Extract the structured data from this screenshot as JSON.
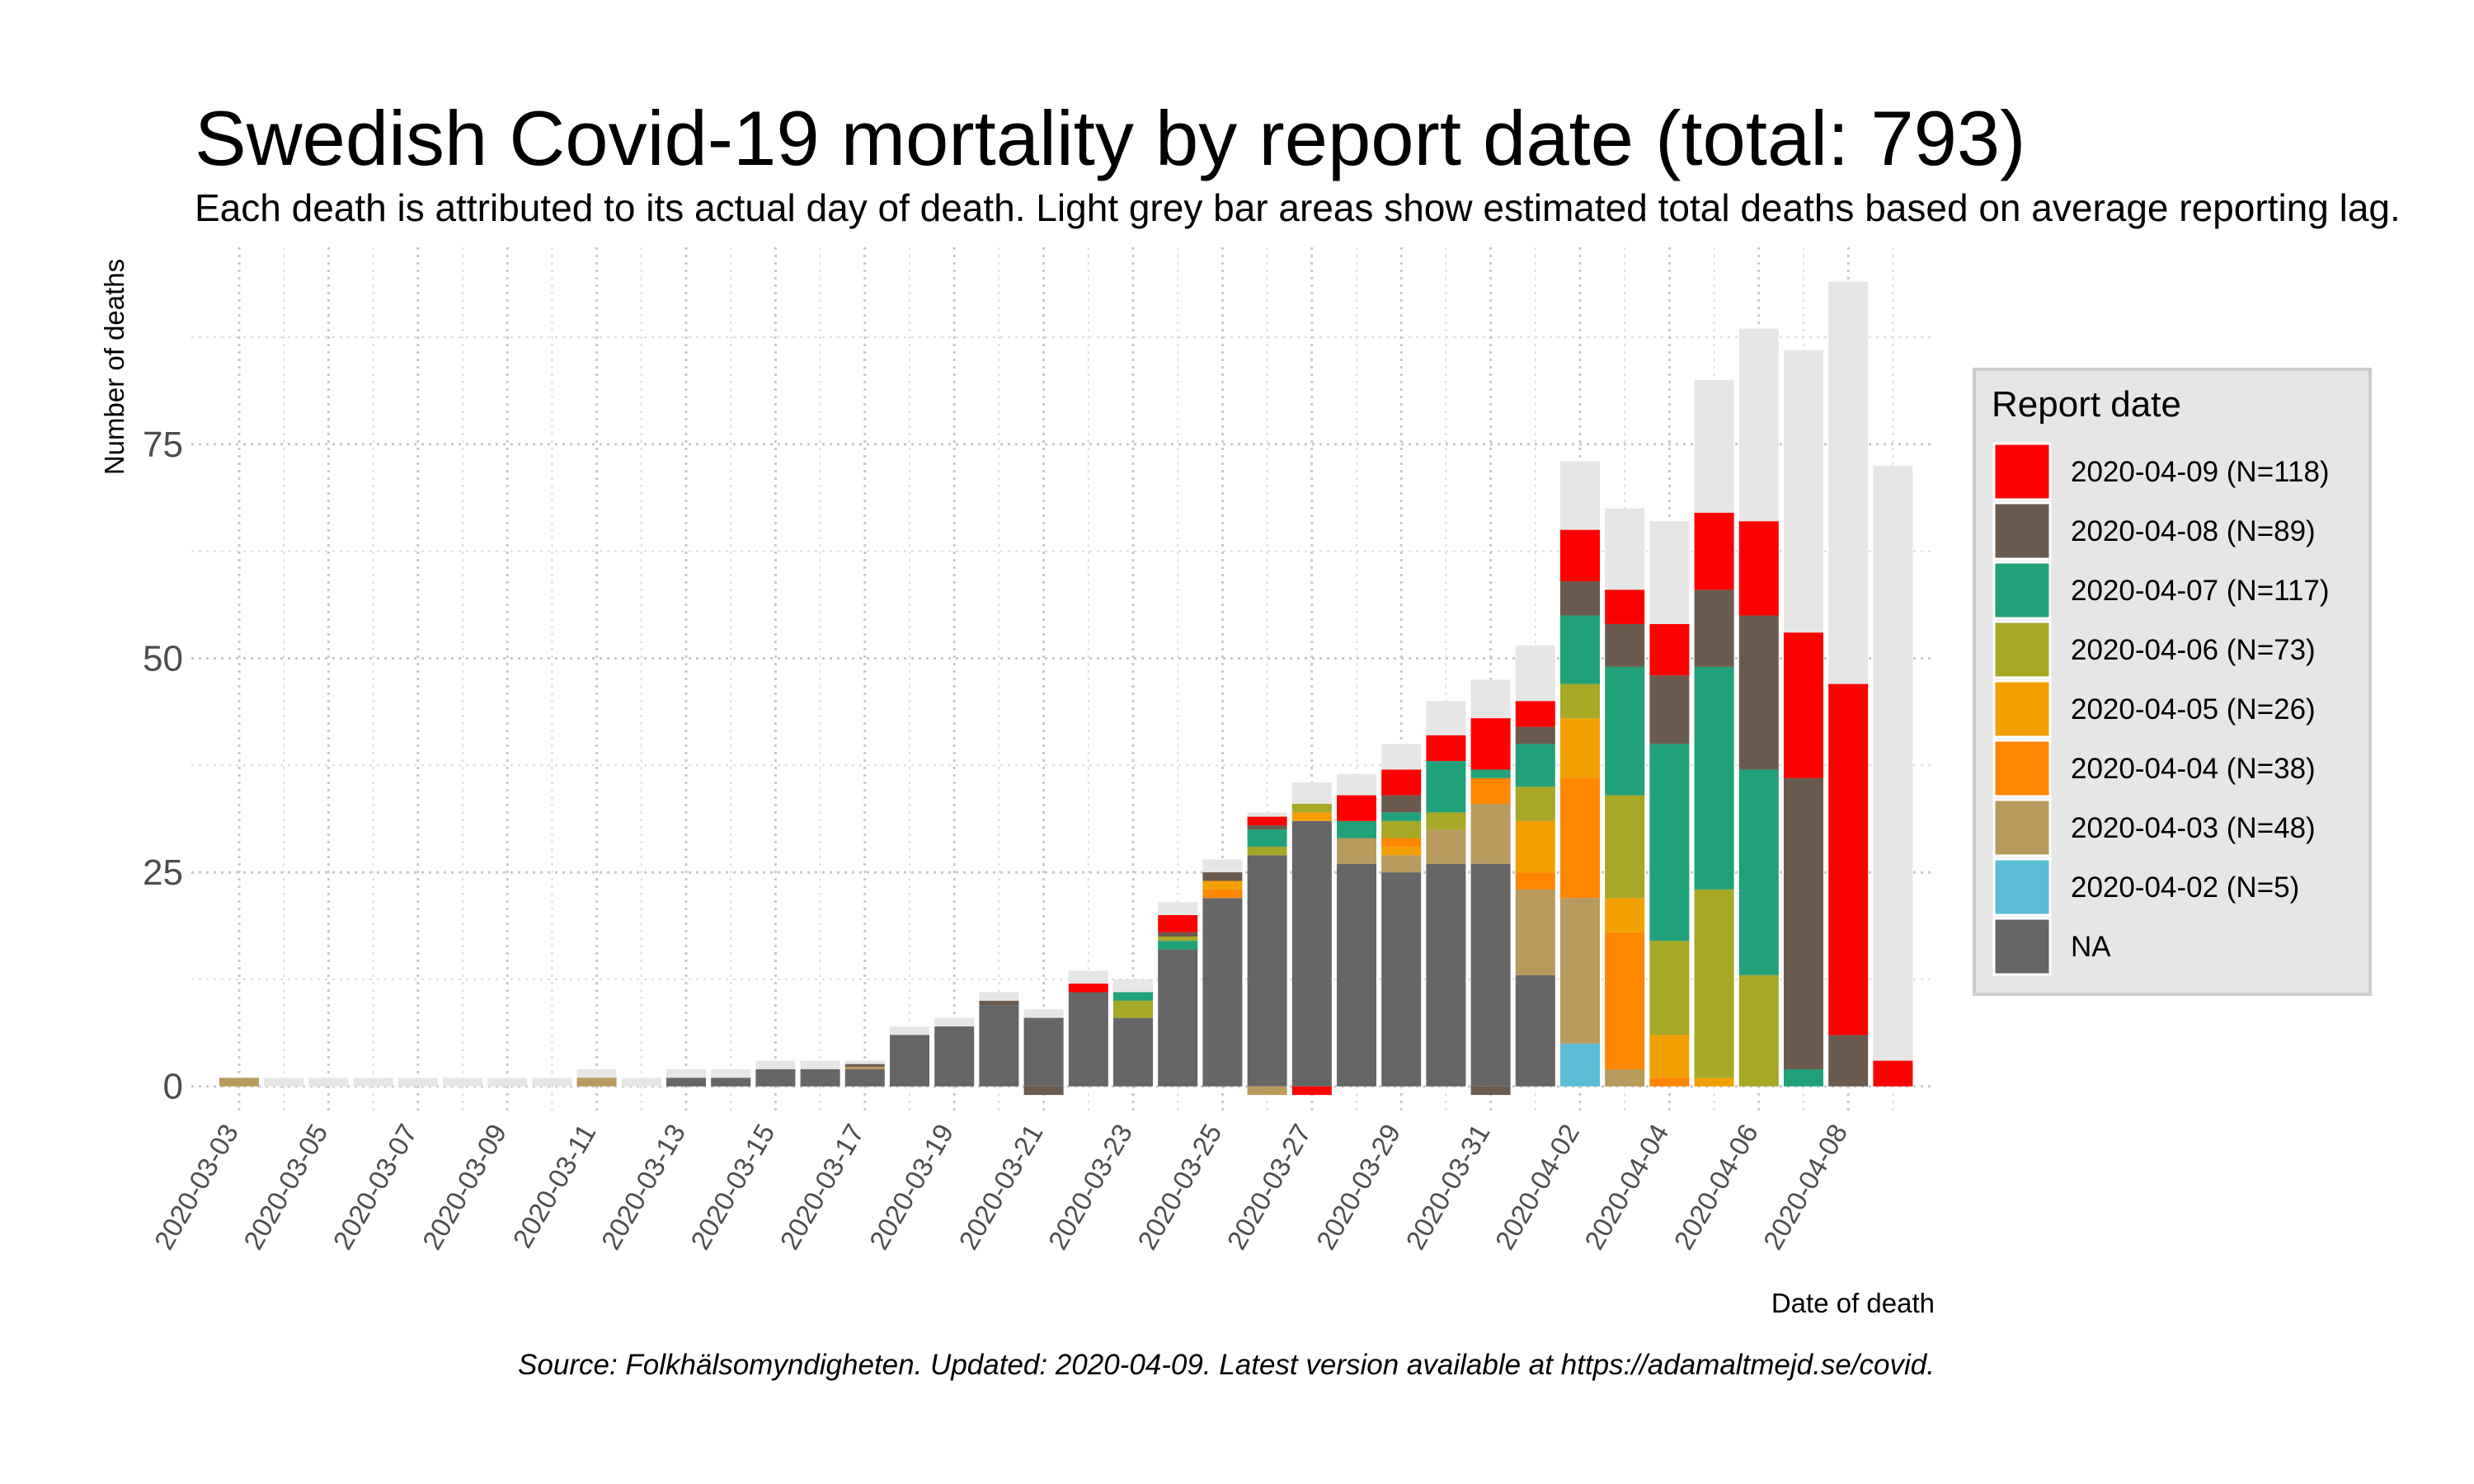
{
  "colors": {
    "estimate": "#e6e6e6",
    "NA": "#666666",
    "2020-04-02": "#5bbcd6",
    "2020-04-03": "#b89a5c",
    "2020-04-04": "#ff8600",
    "2020-04-05": "#f2a000",
    "2020-04-06": "#a7a826",
    "2020-04-07": "#21a179",
    "2020-04-08": "#6b5b4f",
    "2020-04-09": "#ff0000"
  },
  "chart_data": {
    "type": "bar",
    "stacked": true,
    "title": "Swedish Covid-19 mortality by report date (total: 793)",
    "subtitle": "Each death is attributed to its actual day of death. Light grey bar areas show estimated total deaths based on average reporting lag.",
    "xlabel": "Date of death",
    "ylabel": "Number of deaths",
    "caption": "Source: Folkhälsomyndigheten. Updated: 2020-04-09. Latest version available at https://adamaltmejd.se/covid.",
    "ylim": [
      -3.3,
      98
    ],
    "yticks": [
      0,
      25,
      50,
      75
    ],
    "x_tick_labels": [
      "2020-03-03",
      "2020-03-05",
      "2020-03-07",
      "2020-03-09",
      "2020-03-11",
      "2020-03-13",
      "2020-03-15",
      "2020-03-17",
      "2020-03-19",
      "2020-03-21",
      "2020-03-23",
      "2020-03-25",
      "2020-03-27",
      "2020-03-29",
      "2020-03-31",
      "2020-04-02",
      "2020-04-04",
      "2020-04-06",
      "2020-04-08"
    ],
    "legend": {
      "title": "Report date",
      "position": "right",
      "entries": [
        {
          "key": "2020-04-09",
          "label": "2020-04-09 (N=118)"
        },
        {
          "key": "2020-04-08",
          "label": "2020-04-08 (N=89)"
        },
        {
          "key": "2020-04-07",
          "label": "2020-04-07 (N=117)"
        },
        {
          "key": "2020-04-06",
          "label": "2020-04-06 (N=73)"
        },
        {
          "key": "2020-04-05",
          "label": "2020-04-05 (N=26)"
        },
        {
          "key": "2020-04-04",
          "label": "2020-04-04 (N=38)"
        },
        {
          "key": "2020-04-03",
          "label": "2020-04-03 (N=48)"
        },
        {
          "key": "2020-04-02",
          "label": "2020-04-02 (N=5)"
        },
        {
          "key": "NA",
          "label": "NA"
        }
      ]
    },
    "bars": [
      {
        "date": "2020-03-03",
        "estimate": 1,
        "segments": [
          [
            "2020-04-03",
            1
          ]
        ]
      },
      {
        "date": "2020-03-04",
        "estimate": 1,
        "segments": []
      },
      {
        "date": "2020-03-05",
        "estimate": 1,
        "segments": []
      },
      {
        "date": "2020-03-06",
        "estimate": 1,
        "segments": []
      },
      {
        "date": "2020-03-07",
        "estimate": 1,
        "segments": []
      },
      {
        "date": "2020-03-08",
        "estimate": 1,
        "segments": []
      },
      {
        "date": "2020-03-09",
        "estimate": 1,
        "segments": []
      },
      {
        "date": "2020-03-10",
        "estimate": 1,
        "segments": []
      },
      {
        "date": "2020-03-11",
        "estimate": 2,
        "segments": [
          [
            "2020-04-03",
            1
          ]
        ]
      },
      {
        "date": "2020-03-12",
        "estimate": 1,
        "segments": []
      },
      {
        "date": "2020-03-13",
        "estimate": 2,
        "segments": [
          [
            "NA",
            1
          ]
        ]
      },
      {
        "date": "2020-03-14",
        "estimate": 2,
        "segments": [
          [
            "NA",
            1
          ]
        ]
      },
      {
        "date": "2020-03-15",
        "estimate": 3,
        "segments": [
          [
            "NA",
            2
          ]
        ]
      },
      {
        "date": "2020-03-16",
        "estimate": 3,
        "segments": [
          [
            "NA",
            2
          ]
        ]
      },
      {
        "date": "2020-03-17",
        "estimate": 3,
        "segments": [
          [
            "NA",
            2
          ],
          [
            "2020-04-03",
            0.3
          ],
          [
            "2020-04-08",
            0.3
          ]
        ]
      },
      {
        "date": "2020-03-18",
        "estimate": 7,
        "segments": [
          [
            "NA",
            6
          ]
        ]
      },
      {
        "date": "2020-03-19",
        "estimate": 8,
        "segments": [
          [
            "NA",
            7
          ]
        ]
      },
      {
        "date": "2020-03-20",
        "estimate": 11,
        "segments": [
          [
            "NA",
            9.5
          ],
          [
            "2020-04-08",
            0.5
          ]
        ]
      },
      {
        "date": "2020-03-21",
        "estimate": 9,
        "segments": [
          [
            "NA",
            8
          ],
          [
            "2020-04-08",
            -1
          ]
        ]
      },
      {
        "date": "2020-03-22",
        "estimate": 13.5,
        "segments": [
          [
            "NA",
            11
          ],
          [
            "2020-04-09",
            1
          ]
        ]
      },
      {
        "date": "2020-03-23",
        "estimate": 12.5,
        "segments": [
          [
            "NA",
            8
          ],
          [
            "2020-04-06",
            2
          ],
          [
            "2020-04-07",
            1
          ]
        ]
      },
      {
        "date": "2020-03-24",
        "estimate": 21.5,
        "segments": [
          [
            "NA",
            16
          ],
          [
            "2020-04-07",
            1
          ],
          [
            "2020-04-06",
            0.5
          ],
          [
            "2020-04-08",
            0.5
          ],
          [
            "2020-04-09",
            2
          ]
        ]
      },
      {
        "date": "2020-03-25",
        "estimate": 26.5,
        "segments": [
          [
            "NA",
            22
          ],
          [
            "2020-04-04",
            1
          ],
          [
            "2020-04-05",
            1
          ],
          [
            "2020-04-08",
            1
          ]
        ]
      },
      {
        "date": "2020-03-26",
        "estimate": 32,
        "segments": [
          [
            "NA",
            27
          ],
          [
            "2020-04-06",
            1
          ],
          [
            "2020-04-07",
            2
          ],
          [
            "2020-04-08",
            0.5
          ],
          [
            "2020-04-09",
            1
          ],
          [
            "2020-04-03",
            -1
          ]
        ]
      },
      {
        "date": "2020-03-27",
        "estimate": 35.5,
        "segments": [
          [
            "NA",
            31
          ],
          [
            "2020-04-05",
            1
          ],
          [
            "2020-04-06",
            1
          ],
          [
            "2020-04-09",
            -1
          ]
        ]
      },
      {
        "date": "2020-03-28",
        "estimate": 36.5,
        "segments": [
          [
            "NA",
            26
          ],
          [
            "2020-04-03",
            3
          ],
          [
            "2020-04-07",
            2
          ],
          [
            "2020-04-09",
            3
          ]
        ]
      },
      {
        "date": "2020-03-29",
        "estimate": 40,
        "segments": [
          [
            "NA",
            25
          ],
          [
            "2020-04-03",
            2
          ],
          [
            "2020-04-05",
            1
          ],
          [
            "2020-04-04",
            1
          ],
          [
            "2020-04-06",
            2
          ],
          [
            "2020-04-07",
            1
          ],
          [
            "2020-04-08",
            2
          ],
          [
            "2020-04-09",
            3
          ]
        ]
      },
      {
        "date": "2020-03-30",
        "estimate": 45,
        "segments": [
          [
            "NA",
            26
          ],
          [
            "2020-04-03",
            4
          ],
          [
            "2020-04-06",
            2
          ],
          [
            "2020-04-07",
            6
          ],
          [
            "2020-04-09",
            3
          ]
        ]
      },
      {
        "date": "2020-03-31",
        "estimate": 47.5,
        "segments": [
          [
            "NA",
            26
          ],
          [
            "2020-04-03",
            7
          ],
          [
            "2020-04-04",
            3
          ],
          [
            "2020-04-07",
            1
          ],
          [
            "2020-04-09",
            6
          ],
          [
            "2020-04-08",
            -1
          ]
        ]
      },
      {
        "date": "2020-04-01",
        "estimate": 51.5,
        "segments": [
          [
            "NA",
            13
          ],
          [
            "2020-04-03",
            10
          ],
          [
            "2020-04-04",
            2
          ],
          [
            "2020-04-05",
            6
          ],
          [
            "2020-04-06",
            4
          ],
          [
            "2020-04-07",
            5
          ],
          [
            "2020-04-08",
            2
          ],
          [
            "2020-04-09",
            3
          ]
        ]
      },
      {
        "date": "2020-04-02",
        "estimate": 73,
        "segments": [
          [
            "2020-04-02",
            5
          ],
          [
            "2020-04-03",
            17
          ],
          [
            "2020-04-04",
            14
          ],
          [
            "2020-04-05",
            7
          ],
          [
            "2020-04-06",
            4
          ],
          [
            "2020-04-07",
            8
          ],
          [
            "2020-04-08",
            4
          ],
          [
            "2020-04-09",
            6
          ]
        ]
      },
      {
        "date": "2020-04-03",
        "estimate": 67.5,
        "segments": [
          [
            "2020-04-03",
            2
          ],
          [
            "2020-04-04",
            16
          ],
          [
            "2020-04-05",
            4
          ],
          [
            "2020-04-06",
            12
          ],
          [
            "2020-04-07",
            15
          ],
          [
            "2020-04-08",
            5
          ],
          [
            "2020-04-09",
            4
          ]
        ]
      },
      {
        "date": "2020-04-04",
        "estimate": 66,
        "segments": [
          [
            "2020-04-04",
            1
          ],
          [
            "2020-04-05",
            5
          ],
          [
            "2020-04-06",
            11
          ],
          [
            "2020-04-07",
            23
          ],
          [
            "2020-04-08",
            8
          ],
          [
            "2020-04-09",
            6
          ]
        ]
      },
      {
        "date": "2020-04-05",
        "estimate": 82.5,
        "segments": [
          [
            "2020-04-05",
            1
          ],
          [
            "2020-04-06",
            22
          ],
          [
            "2020-04-07",
            26
          ],
          [
            "2020-04-08",
            9
          ],
          [
            "2020-04-09",
            9
          ]
        ]
      },
      {
        "date": "2020-04-06",
        "estimate": 88.5,
        "segments": [
          [
            "2020-04-06",
            13
          ],
          [
            "2020-04-07",
            24
          ],
          [
            "2020-04-08",
            18
          ],
          [
            "2020-04-09",
            11
          ]
        ]
      },
      {
        "date": "2020-04-07",
        "estimate": 86,
        "segments": [
          [
            "2020-04-07",
            2
          ],
          [
            "2020-04-08",
            34
          ],
          [
            "2020-04-09",
            17
          ]
        ]
      },
      {
        "date": "2020-04-08",
        "estimate": 94,
        "segments": [
          [
            "2020-04-08",
            6
          ],
          [
            "2020-04-09",
            41
          ]
        ]
      },
      {
        "date": "2020-04-09",
        "estimate": 72.5,
        "segments": [
          [
            "2020-04-09",
            3
          ]
        ]
      }
    ]
  }
}
